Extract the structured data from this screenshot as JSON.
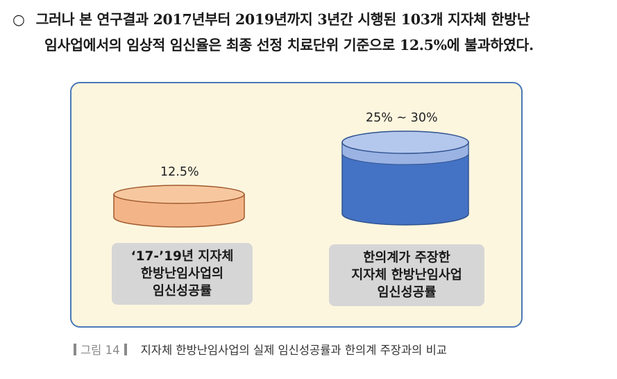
{
  "paragraph": {
    "bullet": "○",
    "line1": "그러나 본 연구결과 2017년부터 2019년까지 3년간 시행된 103개 지자체 한방난",
    "line2": "임사업에서의 임상적 임신율은 최종 선정 치료단위 기준으로 12.5%에 불과하였다."
  },
  "figure": {
    "left_cylinder": {
      "value_label": "12.5%",
      "value": 12.5,
      "color_body": "#f3b488",
      "color_top": "#f7c8a0",
      "label_lines": [
        "‘17-’19년 지자체",
        "한방난임사업의",
        "임신성공률"
      ]
    },
    "right_cylinder": {
      "value_label": "25% ~ 30%",
      "value_min": 25,
      "value_max": 30,
      "color_body": "#4472c4",
      "color_top": "#9ab3e3",
      "label_lines": [
        "한의계가 주장한",
        "지자체 한방난임사업",
        "임신성공률"
      ]
    }
  },
  "caption": {
    "tag": "그림 14",
    "text": "지자체 한방난임사업의 실제 임신성공률과 한의계 주장과의 비교"
  }
}
